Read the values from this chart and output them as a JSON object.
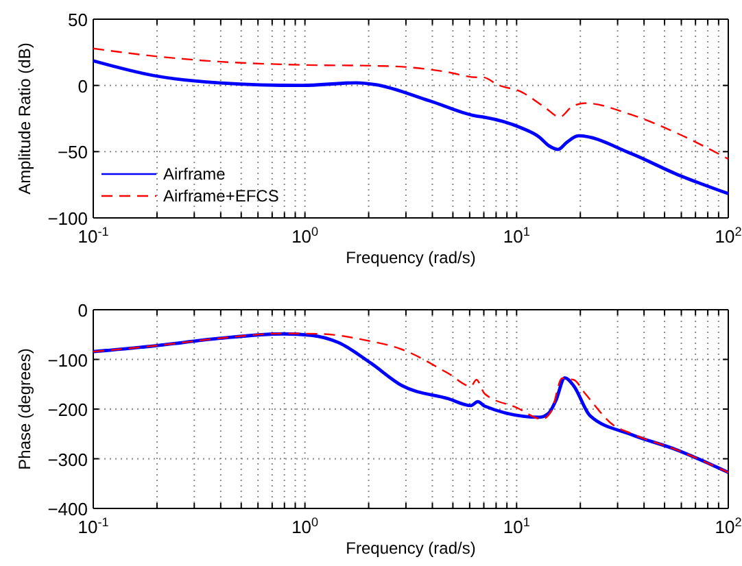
{
  "chart_data": [
    {
      "type": "line",
      "ylabel": "Amplitude Ratio (dB)",
      "xlabel": "Frequency (rad/s)",
      "log": "x",
      "xlim": [
        0.1,
        100
      ],
      "xticks": [
        {
          "value": 0.1,
          "label": "10$^{-1}$"
        },
        {
          "value": 0.2,
          "label": null
        },
        {
          "value": 0.3,
          "label": null
        },
        {
          "value": 0.4,
          "label": null
        },
        {
          "value": 0.5,
          "label": null
        },
        {
          "value": 0.6,
          "label": null
        },
        {
          "value": 0.7,
          "label": null
        },
        {
          "value": 0.8,
          "label": null
        },
        {
          "value": 0.9,
          "label": null
        },
        {
          "value": 1,
          "label": "10$^{0}$"
        },
        {
          "value": 2,
          "label": null
        },
        {
          "value": 3,
          "label": null
        },
        {
          "value": 4,
          "label": null
        },
        {
          "value": 5,
          "label": null
        },
        {
          "value": 6,
          "label": null
        },
        {
          "value": 7,
          "label": null
        },
        {
          "value": 8,
          "label": null
        },
        {
          "value": 9,
          "label": null
        },
        {
          "value": 10,
          "label": "10$^{1}$"
        },
        {
          "value": 20,
          "label": null
        },
        {
          "value": 30,
          "label": null
        },
        {
          "value": 40,
          "label": null
        },
        {
          "value": 50,
          "label": null
        },
        {
          "value": 60,
          "label": null
        },
        {
          "value": 70,
          "label": null
        },
        {
          "value": 80,
          "label": null
        },
        {
          "value": 90,
          "label": null
        },
        {
          "value": 100,
          "label": "10$^{2}$"
        }
      ],
      "ylim": [
        -100,
        50
      ],
      "yticks": [
        -100,
        -50,
        0,
        50
      ],
      "grid": true,
      "legend": "bottom left",
      "series": [
        {
          "name": "Airframe",
          "color": "#0000ff",
          "line_style": "solid",
          "x": [
            0.1,
            0.197,
            0.39,
            0.97,
            1.75,
            2.14,
            3.89,
            6.4,
            7.06,
            10.5,
            12.8,
            14.2,
            15.7,
            17.3,
            19.6,
            34.7,
            57,
            100
          ],
          "values": [
            18.6,
            7.2,
            2,
            0,
            2,
            0.7,
            -11.7,
            -23,
            -24,
            -32,
            -39,
            -45.5,
            -48.3,
            -42.8,
            -38,
            -51.4,
            -67,
            -81.7
          ]
        },
        {
          "name": "Airframe+EFCS",
          "color": "#ff0000",
          "line_style": "dashed",
          "x": [
            0.1,
            0.197,
            0.39,
            0.97,
            2.14,
            2.88,
            4.75,
            6.4,
            6.9,
            8.2,
            10.5,
            13.5,
            16,
            18.2,
            21.1,
            34.7,
            57,
            100
          ],
          "values": [
            27.9,
            22,
            18,
            15.5,
            14.8,
            14.1,
            10,
            6.2,
            6.2,
            0.3,
            -4.8,
            -16.2,
            -23.8,
            -16.2,
            -13.4,
            -22,
            -35.9,
            -55.5
          ]
        }
      ]
    },
    {
      "type": "line",
      "ylabel": "Phase (degrees)",
      "xlabel": "Frequency (rad/s)",
      "log": "x",
      "xlim": [
        0.1,
        100
      ],
      "xticks": [
        {
          "value": 0.1,
          "label": "10$^{-1}$"
        },
        {
          "value": 0.2,
          "label": null
        },
        {
          "value": 0.3,
          "label": null
        },
        {
          "value": 0.4,
          "label": null
        },
        {
          "value": 0.5,
          "label": null
        },
        {
          "value": 0.6,
          "label": null
        },
        {
          "value": 0.7,
          "label": null
        },
        {
          "value": 0.8,
          "label": null
        },
        {
          "value": 0.9,
          "label": null
        },
        {
          "value": 1,
          "label": "10$^{0}$"
        },
        {
          "value": 2,
          "label": null
        },
        {
          "value": 3,
          "label": null
        },
        {
          "value": 4,
          "label": null
        },
        {
          "value": 5,
          "label": null
        },
        {
          "value": 6,
          "label": null
        },
        {
          "value": 7,
          "label": null
        },
        {
          "value": 8,
          "label": null
        },
        {
          "value": 9,
          "label": null
        },
        {
          "value": 10,
          "label": "10$^{1}$"
        },
        {
          "value": 20,
          "label": null
        },
        {
          "value": 30,
          "label": null
        },
        {
          "value": 40,
          "label": null
        },
        {
          "value": 50,
          "label": null
        },
        {
          "value": 60,
          "label": null
        },
        {
          "value": 70,
          "label": null
        },
        {
          "value": 80,
          "label": null
        },
        {
          "value": 90,
          "label": null
        },
        {
          "value": 100,
          "label": "10$^{2}$"
        }
      ],
      "ylim": [
        -400,
        0
      ],
      "yticks": [
        -400,
        -300,
        -200,
        -100,
        0
      ],
      "grid": true,
      "series": [
        {
          "color": "#0000ff",
          "line_style": "solid",
          "x": [
            0.1,
            0.197,
            0.39,
            0.79,
            1.07,
            1.44,
            2.04,
            2.88,
            4.75,
            6.08,
            6.56,
            7.06,
            12.8,
            14.2,
            15.3,
            16.9,
            18.6,
            22.2,
            34.7,
            57,
            100
          ],
          "values": [
            -84.4,
            -72.5,
            -57.8,
            -48.6,
            -51.4,
            -66,
            -107,
            -153,
            -179,
            -193,
            -185,
            -194,
            -216.5,
            -208,
            -183.5,
            -137,
            -153,
            -213,
            -251,
            -282,
            -327.5
          ]
        },
        {
          "color": "#ff0000",
          "line_style": "dashed",
          "x": [
            0.1,
            0.197,
            0.39,
            0.79,
            1.18,
            1.94,
            2.88,
            4.75,
            6.08,
            6.46,
            7.06,
            10,
            13.2,
            14.6,
            16.4,
            18.6,
            21.1,
            28.4,
            34.7,
            57,
            100
          ],
          "values": [
            -84.4,
            -72.5,
            -57.8,
            -47.7,
            -48.6,
            -61.5,
            -80,
            -128,
            -154,
            -141,
            -169,
            -197,
            -220,
            -204,
            -138,
            -141,
            -169,
            -231,
            -249,
            -282,
            -327.5
          ]
        }
      ]
    }
  ]
}
